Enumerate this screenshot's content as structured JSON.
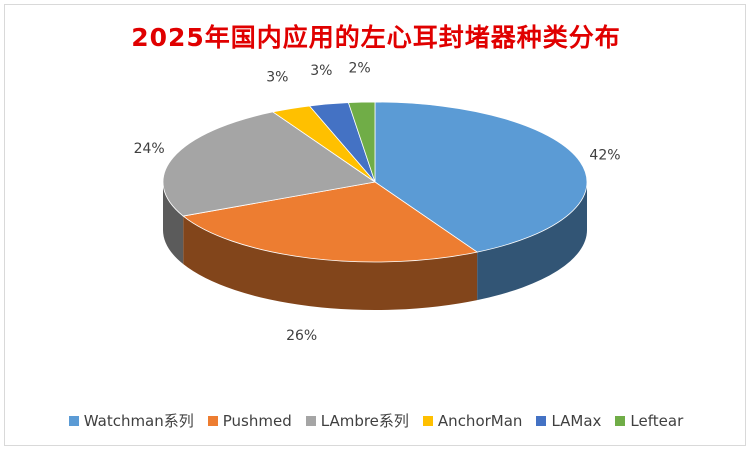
{
  "chart_data": {
    "type": "pie",
    "title": "2025年国内应用的左心耳封堵器种类分布",
    "unit": "%",
    "legend_position": "bottom",
    "categories": [
      "Watchman系列",
      "Pushmed",
      "LAmbre系列",
      "AnchorMan",
      "LAMax",
      "Leftear"
    ],
    "values": [
      42,
      26,
      24,
      3,
      3,
      2
    ],
    "labels": [
      "42%",
      "26%",
      "24%",
      "3%",
      "3%",
      "2%"
    ],
    "colors": [
      "#5b9bd5",
      "#ed7d31",
      "#a5a5a5",
      "#ffc000",
      "#4472c4",
      "#70ad47"
    ]
  }
}
